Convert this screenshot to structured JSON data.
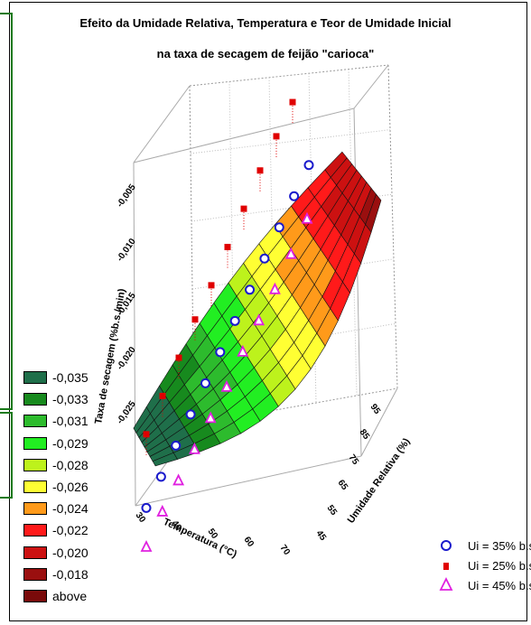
{
  "chart_data": {
    "type": "surface3d_scatter",
    "title": "Efeito da Umidade Relativa, Temperatura e Teor de Umidade Inicial",
    "subtitle": "na taxa de secagem de feijão \"carioca\"",
    "x_ticks": [
      "30",
      "40",
      "50",
      "60",
      "70"
    ],
    "y_ticks": [
      "45",
      "55",
      "65",
      "75",
      "85",
      "95"
    ],
    "z_ticks": [
      "-0,025",
      "-0,020",
      "-0,015",
      "-0,010",
      "-0,005"
    ],
    "x_axis_label": "Temperatura (°C)",
    "y_axis_label": "Umidade Relativa (%)",
    "z_axis_label": "Taxa de secagem (%b.s./min)",
    "contour_legend": [
      {
        "label": "-0,035",
        "color": "#1f6f4a"
      },
      {
        "label": "-0,033",
        "color": "#178a1e"
      },
      {
        "label": "-0,031",
        "color": "#2dbb2d"
      },
      {
        "label": "-0,029",
        "color": "#22ee22"
      },
      {
        "label": "-0,028",
        "color": "#bdf21c"
      },
      {
        "label": "-0,026",
        "color": "#ffff33"
      },
      {
        "label": "-0,024",
        "color": "#ff9a1a"
      },
      {
        "label": "-0,022",
        "color": "#ff1a1a"
      },
      {
        "label": "-0,020",
        "color": "#cc1111"
      },
      {
        "label": "-0,018",
        "color": "#9a0f0f"
      },
      {
        "label": "above",
        "color": "#7a0a0a"
      }
    ],
    "series": [
      {
        "name": "Ui = 35% b.s",
        "marker": "circle",
        "color": "#1a1acc",
        "z": [
          -0.031,
          -0.03,
          -0.029,
          -0.028,
          -0.027,
          -0.026,
          -0.025,
          -0.024,
          -0.023,
          -0.022,
          -0.021,
          -0.02
        ]
      },
      {
        "name": "Ui = 25% b.s",
        "marker": "square",
        "color": "#e00000",
        "z": [
          -0.024,
          -0.022,
          -0.02,
          -0.018,
          -0.017,
          -0.015,
          -0.013,
          -0.011,
          -0.01,
          -0.009
        ]
      },
      {
        "name": "Ui = 45% b.s",
        "marker": "triangle",
        "color": "#e020e0",
        "z": [
          -0.034,
          -0.032,
          -0.031,
          -0.03,
          -0.029,
          -0.028,
          -0.026,
          -0.025,
          -0.024,
          -0.022,
          -0.02
        ]
      }
    ]
  }
}
